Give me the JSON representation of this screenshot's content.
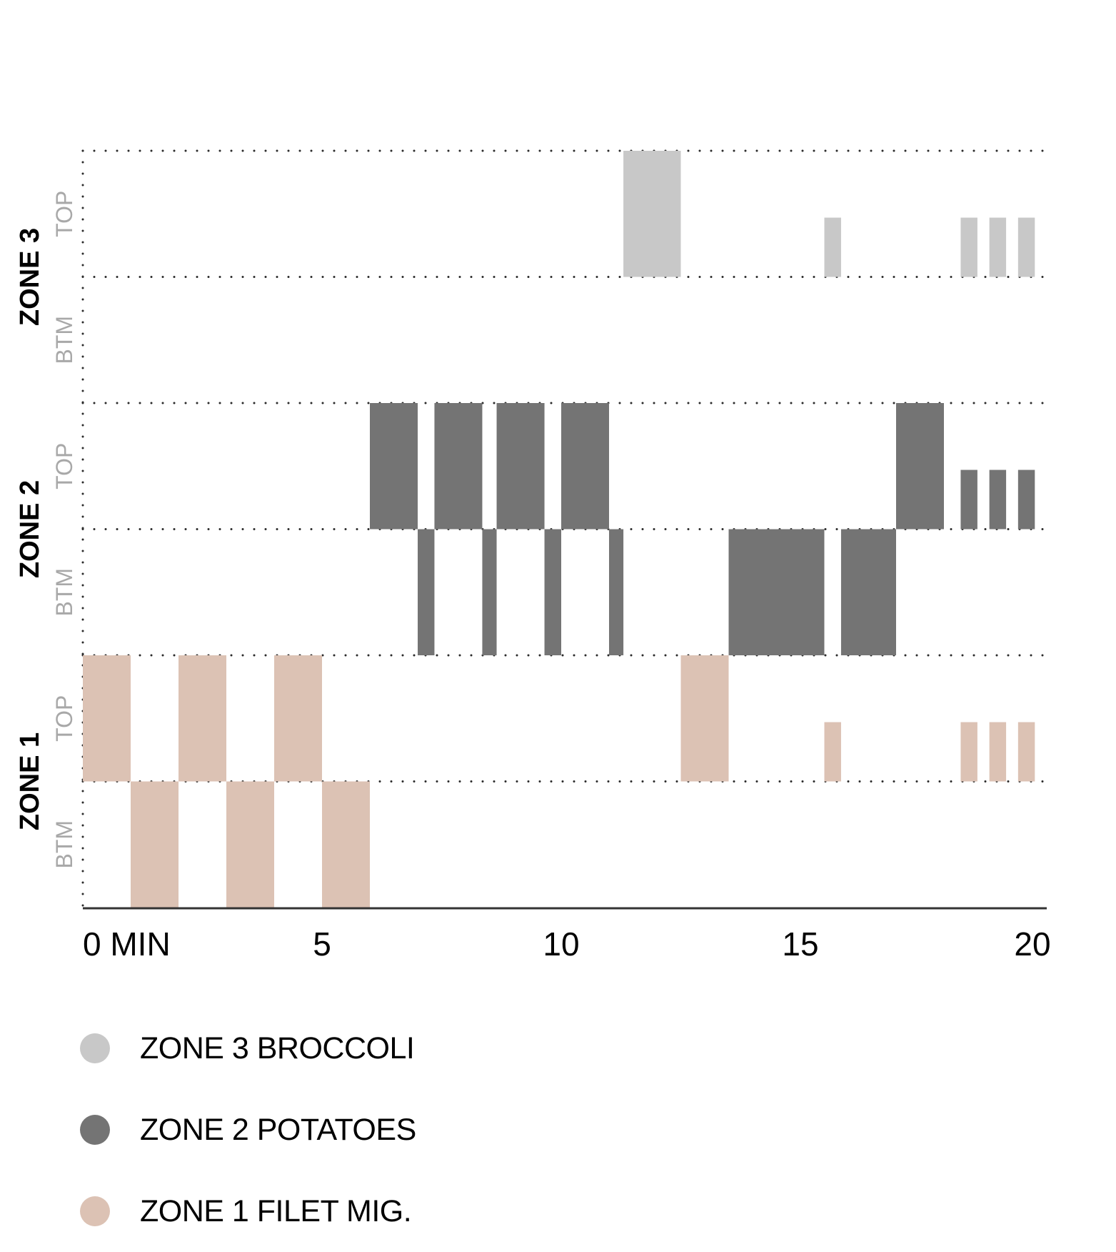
{
  "chart_data": {
    "type": "timeline",
    "x_unit": "MIN",
    "xlim": [
      0,
      20
    ],
    "x_ticks": [
      "0 MIN",
      "5",
      "10",
      "15",
      "20"
    ],
    "x_tick_values": [
      0,
      5,
      10,
      15,
      20
    ],
    "grid": "dotted",
    "legend_position": "bottom-left",
    "rows": [
      {
        "zone": "ZONE 3",
        "level": "TOP"
      },
      {
        "zone": "ZONE 3",
        "level": "BTM"
      },
      {
        "zone": "ZONE 2",
        "level": "TOP"
      },
      {
        "zone": "ZONE 2",
        "level": "BTM"
      },
      {
        "zone": "ZONE 1",
        "level": "TOP"
      },
      {
        "zone": "ZONE 1",
        "level": "BTM"
      }
    ],
    "zones": [
      {
        "label": "ZONE 3",
        "top_label": "TOP",
        "btm_label": "BTM"
      },
      {
        "label": "ZONE 2",
        "top_label": "TOP",
        "btm_label": "BTM"
      },
      {
        "label": "ZONE 1",
        "top_label": "TOP",
        "btm_label": "BTM"
      }
    ],
    "series": [
      {
        "name": "ZONE 3 BROCCOLI",
        "color": "#c8c8c8",
        "segments": [
          {
            "zone": "ZONE 3",
            "level": "TOP",
            "start": 11.3,
            "end": 12.5,
            "height": 1.0
          },
          {
            "zone": "ZONE 3",
            "level": "TOP",
            "start": 15.5,
            "end": 15.85,
            "height": 0.47
          },
          {
            "zone": "ZONE 3",
            "level": "TOP",
            "start": 18.35,
            "end": 18.7,
            "height": 0.47
          },
          {
            "zone": "ZONE 3",
            "level": "TOP",
            "start": 18.95,
            "end": 19.3,
            "height": 0.47
          },
          {
            "zone": "ZONE 3",
            "level": "TOP",
            "start": 19.55,
            "end": 19.9,
            "height": 0.47
          }
        ]
      },
      {
        "name": "ZONE 2 POTATOES",
        "color": "#747474",
        "segments": [
          {
            "zone": "ZONE 2",
            "level": "TOP",
            "start": 6.0,
            "end": 7.0,
            "height": 1.0
          },
          {
            "zone": "ZONE 2",
            "level": "TOP",
            "start": 7.35,
            "end": 8.35,
            "height": 1.0
          },
          {
            "zone": "ZONE 2",
            "level": "TOP",
            "start": 8.65,
            "end": 9.65,
            "height": 1.0
          },
          {
            "zone": "ZONE 2",
            "level": "TOP",
            "start": 10.0,
            "end": 11.0,
            "height": 1.0
          },
          {
            "zone": "ZONE 2",
            "level": "TOP",
            "start": 17.0,
            "end": 18.0,
            "height": 1.0
          },
          {
            "zone": "ZONE 2",
            "level": "TOP",
            "start": 18.35,
            "end": 18.7,
            "height": 0.47
          },
          {
            "zone": "ZONE 2",
            "level": "TOP",
            "start": 18.95,
            "end": 19.3,
            "height": 0.47
          },
          {
            "zone": "ZONE 2",
            "level": "TOP",
            "start": 19.55,
            "end": 19.9,
            "height": 0.47
          },
          {
            "zone": "ZONE 2",
            "level": "BTM",
            "start": 7.0,
            "end": 7.35,
            "height": 1.0
          },
          {
            "zone": "ZONE 2",
            "level": "BTM",
            "start": 8.35,
            "end": 8.65,
            "height": 1.0
          },
          {
            "zone": "ZONE 2",
            "level": "BTM",
            "start": 9.65,
            "end": 10.0,
            "height": 1.0
          },
          {
            "zone": "ZONE 2",
            "level": "BTM",
            "start": 11.0,
            "end": 11.3,
            "height": 1.0
          },
          {
            "zone": "ZONE 2",
            "level": "BTM",
            "start": 13.5,
            "end": 15.5,
            "height": 1.0
          },
          {
            "zone": "ZONE 2",
            "level": "BTM",
            "start": 15.85,
            "end": 17.0,
            "height": 1.0
          }
        ]
      },
      {
        "name": "ZONE 1 FILET MIG.",
        "color": "#dcc2b4",
        "segments": [
          {
            "zone": "ZONE 1",
            "level": "TOP",
            "start": 0.0,
            "end": 1.0,
            "height": 1.0
          },
          {
            "zone": "ZONE 1",
            "level": "TOP",
            "start": 2.0,
            "end": 3.0,
            "height": 1.0
          },
          {
            "zone": "ZONE 1",
            "level": "TOP",
            "start": 4.0,
            "end": 5.0,
            "height": 1.0
          },
          {
            "zone": "ZONE 1",
            "level": "TOP",
            "start": 12.5,
            "end": 13.5,
            "height": 1.0
          },
          {
            "zone": "ZONE 1",
            "level": "TOP",
            "start": 15.5,
            "end": 15.85,
            "height": 0.47
          },
          {
            "zone": "ZONE 1",
            "level": "TOP",
            "start": 18.35,
            "end": 18.7,
            "height": 0.47
          },
          {
            "zone": "ZONE 1",
            "level": "TOP",
            "start": 18.95,
            "end": 19.3,
            "height": 0.47
          },
          {
            "zone": "ZONE 1",
            "level": "TOP",
            "start": 19.55,
            "end": 19.9,
            "height": 0.47
          },
          {
            "zone": "ZONE 1",
            "level": "BTM",
            "start": 1.0,
            "end": 2.0,
            "height": 1.0
          },
          {
            "zone": "ZONE 1",
            "level": "BTM",
            "start": 3.0,
            "end": 4.0,
            "height": 1.0
          },
          {
            "zone": "ZONE 1",
            "level": "BTM",
            "start": 5.0,
            "end": 6.0,
            "height": 1.0
          }
        ]
      }
    ]
  },
  "legend": {
    "items": [
      {
        "label": "ZONE 3 BROCCOLI",
        "color": "#c8c8c8"
      },
      {
        "label": "ZONE 2 POTATOES",
        "color": "#747474"
      },
      {
        "label": "ZONE 1 FILET MIG.",
        "color": "#dcc2b4"
      }
    ]
  }
}
